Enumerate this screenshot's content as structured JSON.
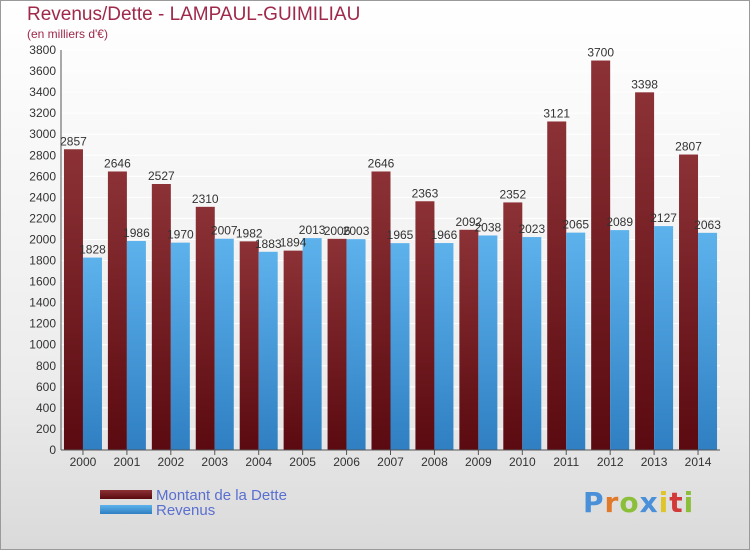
{
  "header": {
    "title": "Revenus/Dette - LAMPAUL-GUIMILIAU",
    "subtitle": "(en milliers d'€)"
  },
  "chart_data": {
    "type": "bar",
    "title": "Revenus/Dette - LAMPAUL-GUIMILIAU",
    "ylabel": "(en milliers d'€)",
    "ylim": [
      0,
      3800
    ],
    "yticks": [
      0,
      200,
      400,
      600,
      800,
      1000,
      1200,
      1400,
      1600,
      1800,
      2000,
      2200,
      2400,
      2600,
      2800,
      3000,
      3200,
      3400,
      3600,
      3800
    ],
    "grid": true,
    "legend": "bottom-left",
    "categories": [
      "2000",
      "2001",
      "2002",
      "2003",
      "2004",
      "2005",
      "2006",
      "2007",
      "2008",
      "2009",
      "2010",
      "2011",
      "2012",
      "2013",
      "2014"
    ],
    "series": [
      {
        "name": "Montant de la Dette",
        "color": "#7a1f24",
        "values": [
          2857,
          2646,
          2527,
          2310,
          1982,
          1894,
          2006,
          2646,
          2363,
          2092,
          2352,
          3121,
          3700,
          3398,
          2807
        ]
      },
      {
        "name": "Revenus",
        "color": "#4a9fdc",
        "values": [
          1828,
          1986,
          1970,
          2007,
          1883,
          2013,
          2003,
          1965,
          1966,
          2038,
          2023,
          2065,
          2089,
          2127,
          2063
        ]
      }
    ]
  },
  "legend": {
    "items": [
      {
        "label": "Montant de la Dette",
        "color": "#7a1f24"
      },
      {
        "label": "Revenus",
        "color": "#4a9fdc"
      }
    ]
  },
  "logo": {
    "text": "Proxiti"
  }
}
